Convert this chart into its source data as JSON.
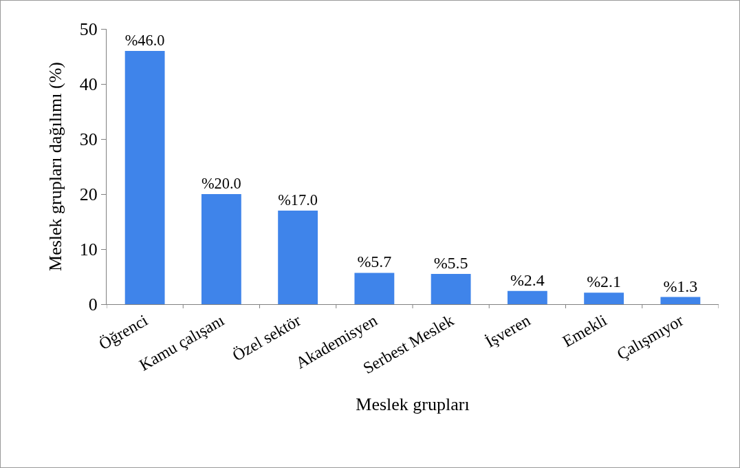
{
  "chart_data": {
    "type": "bar",
    "xlabel": "Meslek grupları",
    "ylabel": "Meslek grupları dağılımı (%)",
    "categories": [
      "Öğrenci",
      "Kamu çalışanı",
      "Özel sektör",
      "Akademisyen",
      "Serbest Meslek",
      "İşveren",
      "Emekli",
      "Çalışmıyor"
    ],
    "values": [
      46.0,
      20.0,
      17.0,
      5.7,
      5.5,
      2.4,
      2.1,
      1.3
    ],
    "value_labels": [
      "%46.0",
      "%20.0",
      "%17.0",
      "%5.7",
      "%5.5",
      "%2.4",
      "%2.1",
      "%1.3"
    ],
    "color": "#3f84ea",
    "ylim": [
      0,
      50
    ],
    "yticks": [
      0,
      10,
      20,
      30,
      40,
      50
    ],
    "grid": false,
    "legend": false
  }
}
